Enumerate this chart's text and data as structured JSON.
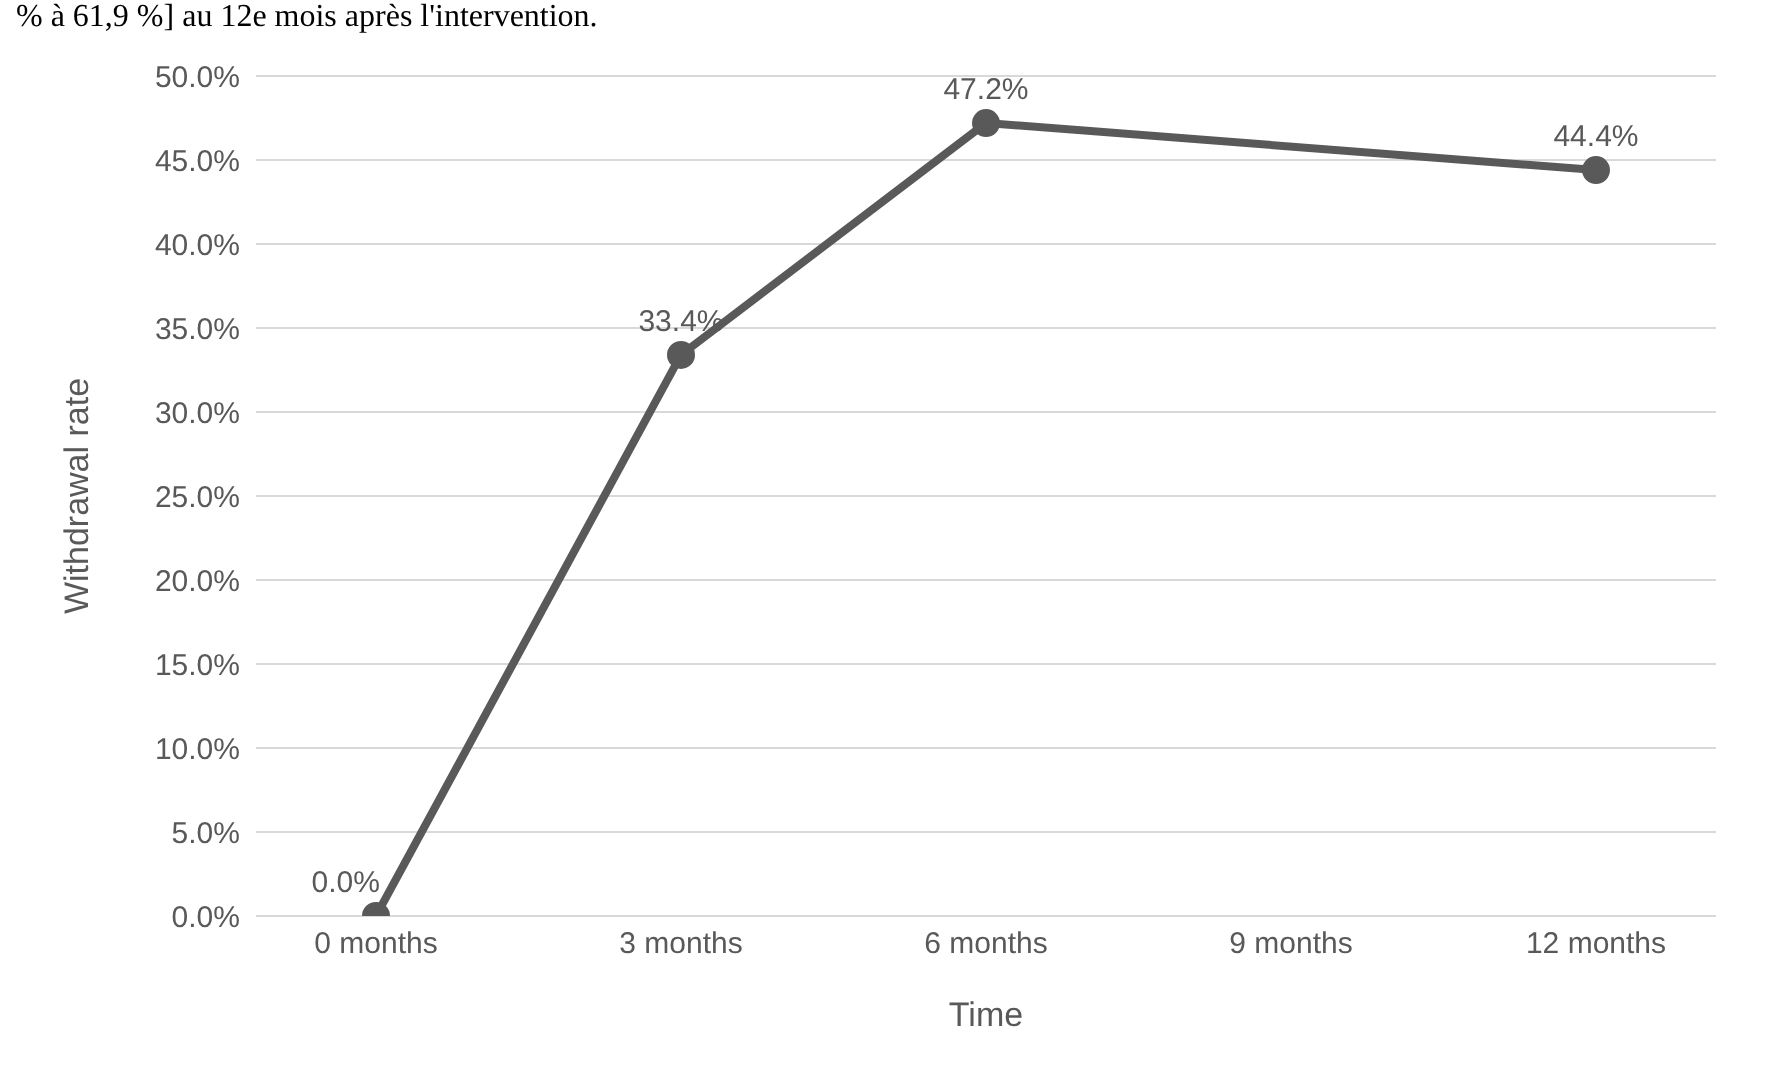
{
  "chart_data": {
    "type": "line",
    "xlabel": "Time",
    "ylabel": "Withdrawal rate",
    "annotations": [
      "% à 61,9 %] au 12e mois après l'intervention."
    ],
    "categories": [
      "0 months",
      "3 months",
      "6 months",
      "9 months",
      "12 months"
    ],
    "series": [
      {
        "color": "#595959",
        "values": [
          0,
          33.4,
          47.2,
          null,
          44.4
        ],
        "value_labels": [
          "0.0%",
          "33.4%",
          "47.2%",
          null,
          "44.4%"
        ]
      }
    ],
    "ylim": [
      0,
      50
    ],
    "yticks": [
      {
        "value": 0,
        "label": "0.0%"
      },
      {
        "value": 5,
        "label": "5.0%"
      },
      {
        "value": 10,
        "label": "10.0%"
      },
      {
        "value": 15,
        "label": "15.0%"
      },
      {
        "value": 20,
        "label": "20.0%"
      },
      {
        "value": 25,
        "label": "25.0%"
      },
      {
        "value": 30,
        "label": "30.0%"
      },
      {
        "value": 35,
        "label": "35.0%"
      },
      {
        "value": 40,
        "label": "40.0%"
      },
      {
        "value": 45,
        "label": "45.0%"
      },
      {
        "value": 50,
        "label": "50.0%"
      }
    ],
    "grid": "y",
    "marker": "circle",
    "line_style": "solid",
    "legend": false
  }
}
